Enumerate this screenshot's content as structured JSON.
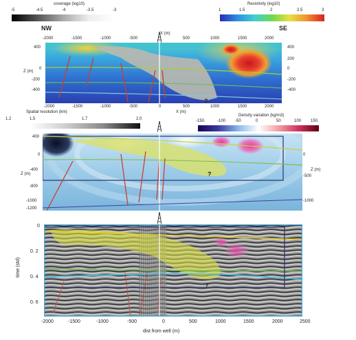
{
  "colorbars": {
    "coverage": {
      "title": "coverage (log10)",
      "ticks": [
        "-5",
        "-4.5",
        "-4",
        "-3.5",
        "-3"
      ]
    },
    "resistivity": {
      "title": "Resistivity (log10)",
      "ticks": [
        "1",
        "1.5",
        "2",
        "2.5",
        "3"
      ],
      "colors": [
        "#2a2ab8",
        "#2f8ee0",
        "#3fd0d0",
        "#6fd850",
        "#e8e040",
        "#f09030",
        "#d82020"
      ]
    },
    "spatial_resolution": {
      "title": "Spatial resolution (km)",
      "ticks": [
        "1.2",
        "1.5",
        "1.7",
        "2.0"
      ]
    },
    "density": {
      "title": "Density variation (kg/m3)",
      "ticks": [
        "-150.",
        "-100",
        "-50",
        "0",
        "50",
        "100",
        "150."
      ],
      "colors": [
        "#1a0050",
        "#3a3aa0",
        "#8ab8e8",
        "#ffffff",
        "#f0a0a0",
        "#d03060",
        "#600010"
      ]
    }
  },
  "panel1": {
    "left_label": "NW",
    "right_label": "SE",
    "x_axis_label": "X (m)",
    "z_axis_label": "Z (m)",
    "x_ticks": [
      "-2000",
      "-1500",
      "-1000",
      "-500",
      "0",
      "500",
      "1000",
      "1500",
      "2000"
    ],
    "z_ticks": [
      "400",
      "200",
      "0",
      "-200",
      "-400"
    ],
    "question_mark": "?"
  },
  "panel2": {
    "z_axis_label": "Z (m)",
    "left_ticks": [
      "400",
      "0",
      "-400",
      "-800",
      "-1000",
      "-1200"
    ],
    "right_ticks": [
      "0",
      "-500",
      "-1000"
    ],
    "question_mark": "?"
  },
  "panel3": {
    "y_axis_label": "time (std)",
    "y_ticks": [
      "0",
      "0. 2",
      "0. 4",
      "0. 6"
    ],
    "x_ticks": [
      "-2000",
      "-1500",
      "-1000",
      "-500",
      "0",
      "500",
      "1000",
      "1500",
      "2000",
      "2500"
    ],
    "x_axis_label": "dist from well (m)",
    "question_mark": "?"
  }
}
